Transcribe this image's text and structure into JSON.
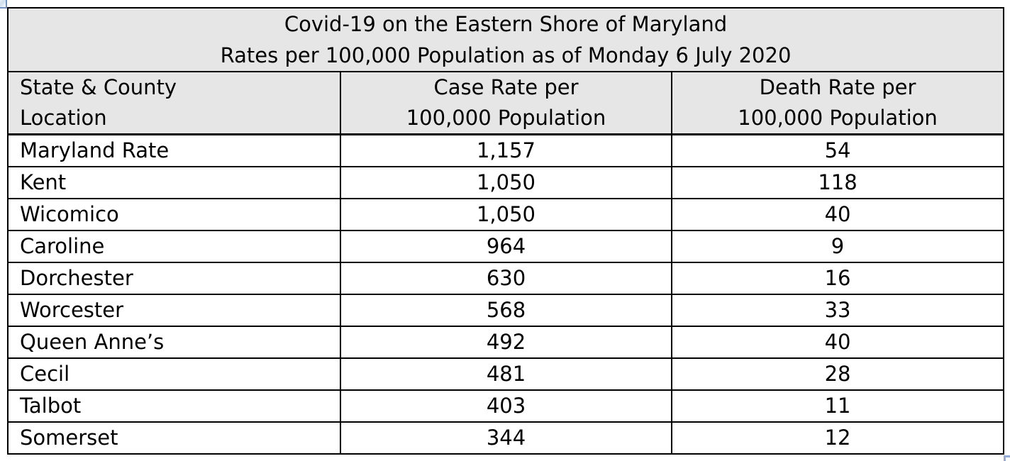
{
  "table": {
    "title_line1": "Covid-19 on the Eastern Shore of Maryland",
    "title_line2": "Rates per 100,000 Population as of Monday 6 July 2020",
    "columns": [
      {
        "label_line1": "State & County",
        "label_line2": "Location"
      },
      {
        "label_line1": "Case Rate per",
        "label_line2": "100,000 Population"
      },
      {
        "label_line1": "Death Rate per",
        "label_line2": "100,000 Population"
      }
    ],
    "rows": [
      {
        "location": "Maryland Rate",
        "case_rate": "1,157",
        "death_rate": "54"
      },
      {
        "location": "Kent",
        "case_rate": "1,050",
        "death_rate": "118"
      },
      {
        "location": "Wicomico",
        "case_rate": "1,050",
        "death_rate": "40"
      },
      {
        "location": "Caroline",
        "case_rate": "964",
        "death_rate": "9"
      },
      {
        "location": "Dorchester",
        "case_rate": "630",
        "death_rate": "16"
      },
      {
        "location": "Worcester",
        "case_rate": "568",
        "death_rate": "33"
      },
      {
        "location": "Queen Anne’s",
        "case_rate": "492",
        "death_rate": "40"
      },
      {
        "location": "Cecil",
        "case_rate": "481",
        "death_rate": "28"
      },
      {
        "location": "Talbot",
        "case_rate": "403",
        "death_rate": "11"
      },
      {
        "location": "Somerset",
        "case_rate": "344",
        "death_rate": "12"
      }
    ],
    "colors": {
      "header_bg": "#e6e6e6",
      "border": "#000000",
      "handle_blue": "#94abdc"
    }
  },
  "chart_data": {
    "type": "table",
    "title": "Covid-19 on the Eastern Shore of Maryland — Rates per 100,000 Population as of Monday 6 July 2020",
    "categories": [
      "Maryland Rate",
      "Kent",
      "Wicomico",
      "Caroline",
      "Dorchester",
      "Worcester",
      "Queen Anne’s",
      "Cecil",
      "Talbot",
      "Somerset"
    ],
    "series": [
      {
        "name": "Case Rate per 100,000 Population",
        "values": [
          1157,
          1050,
          1050,
          964,
          630,
          568,
          492,
          481,
          403,
          344
        ]
      },
      {
        "name": "Death Rate per 100,000 Population",
        "values": [
          54,
          118,
          40,
          9,
          16,
          33,
          40,
          28,
          11,
          12
        ]
      }
    ]
  }
}
